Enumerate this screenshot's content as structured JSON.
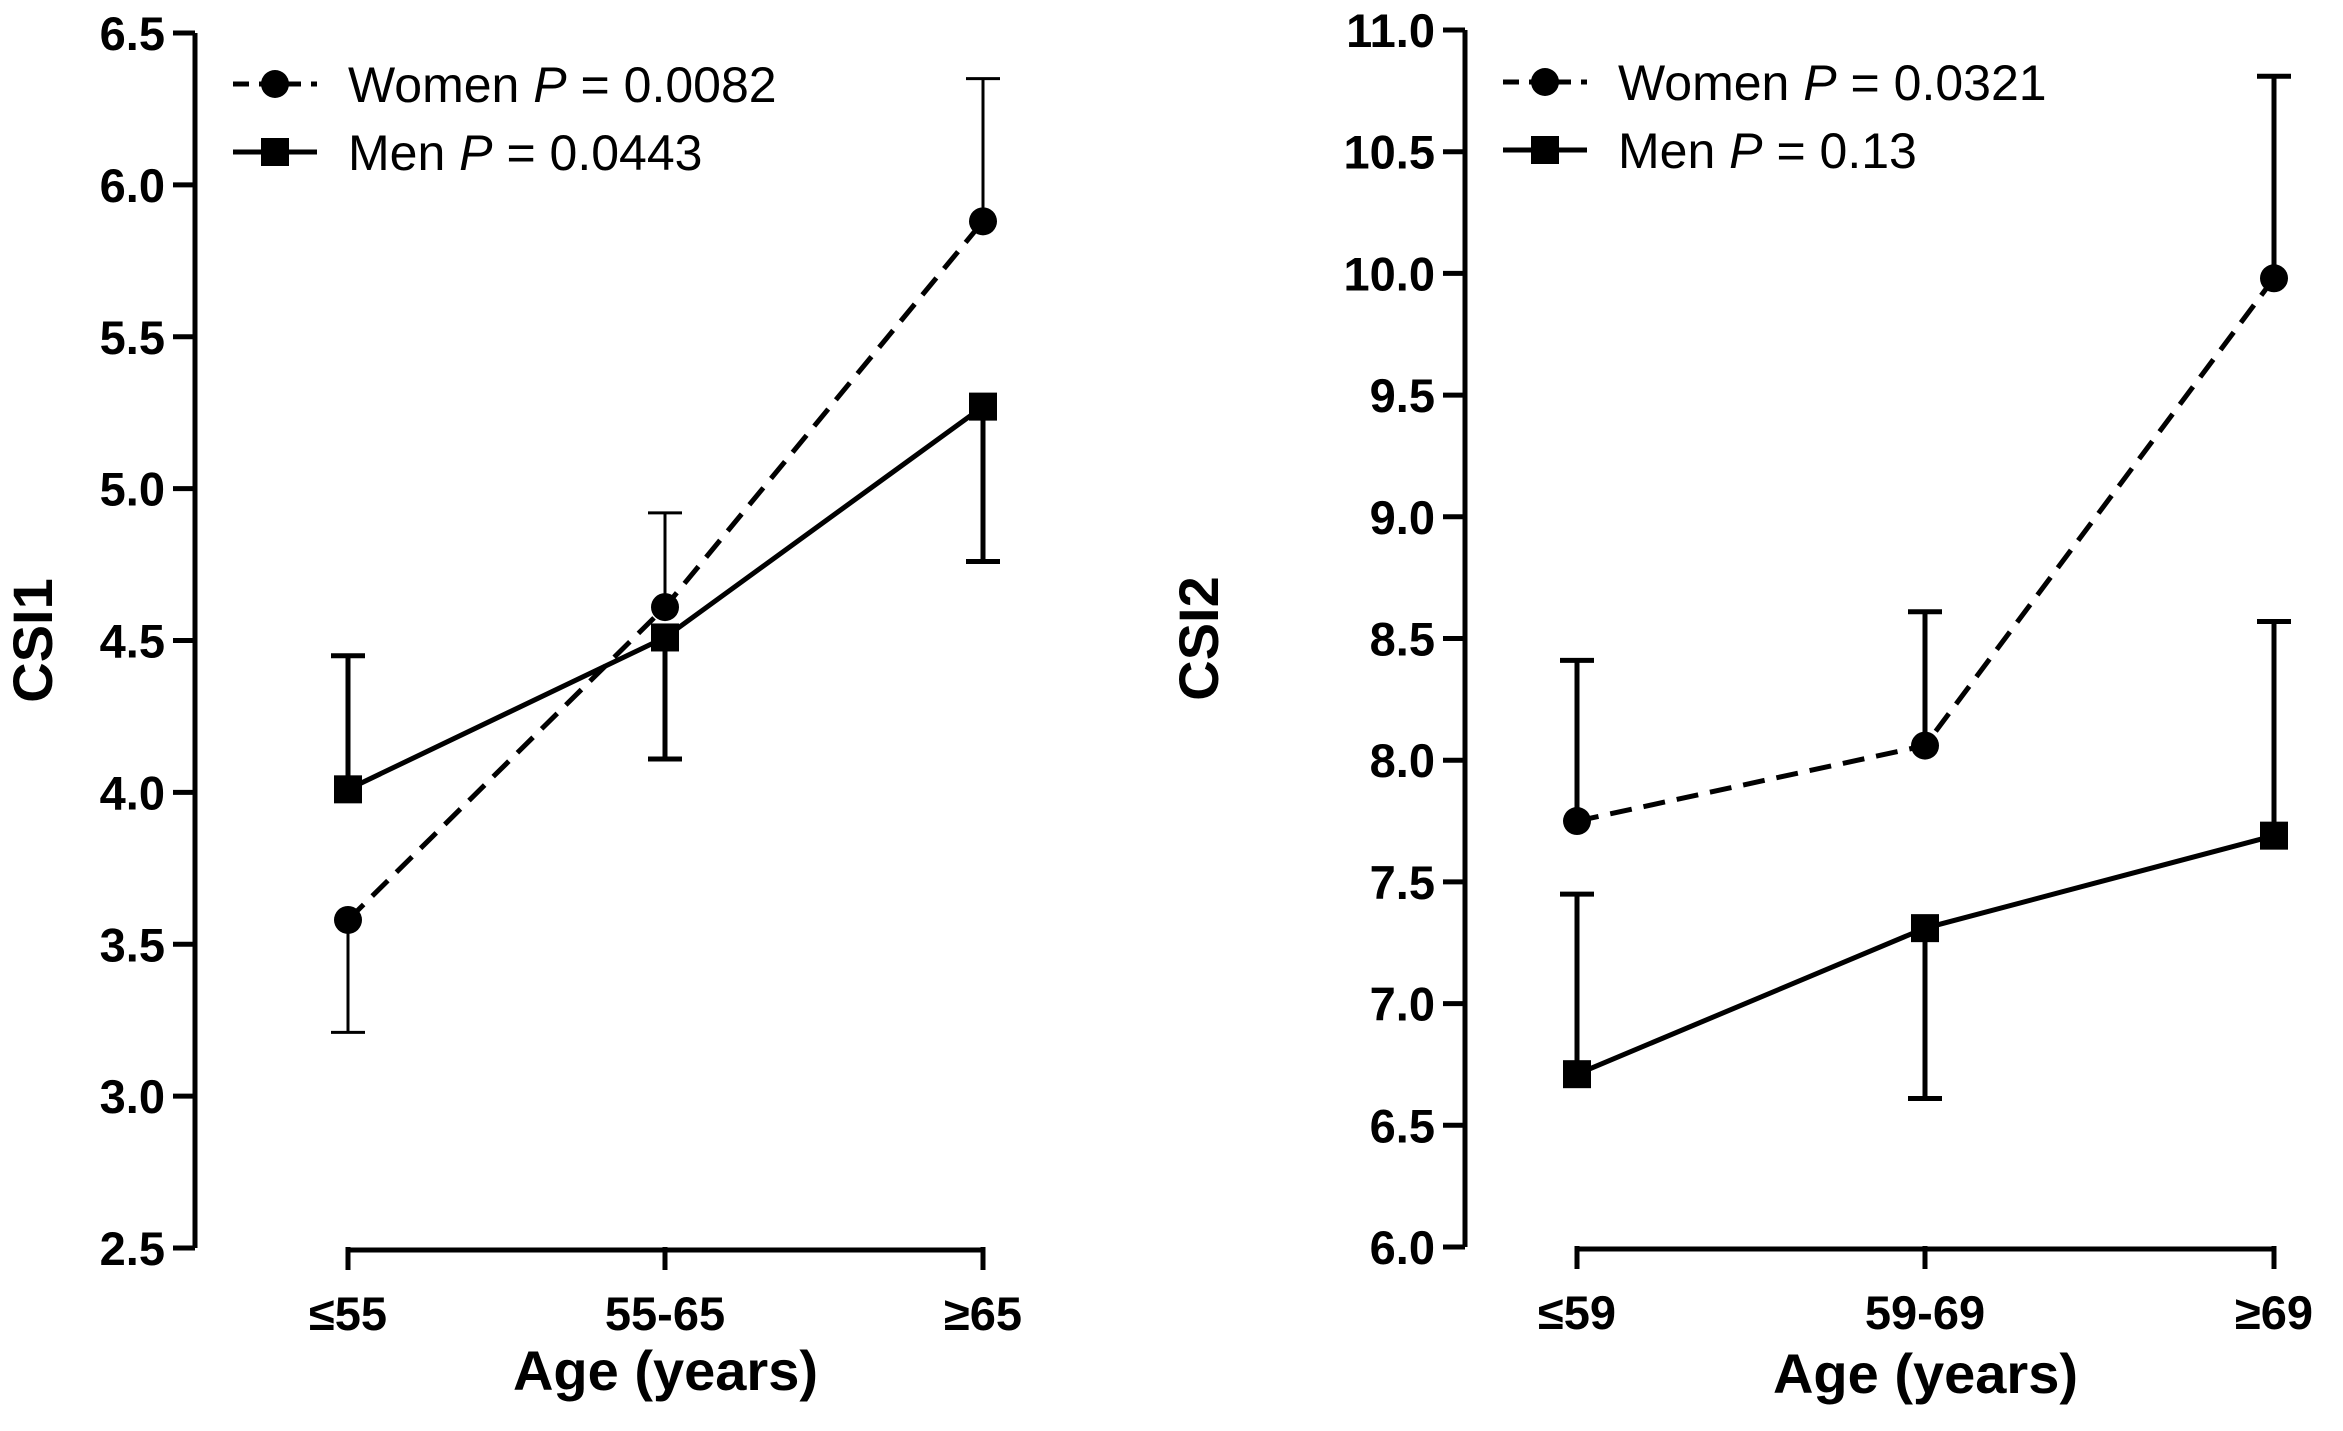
{
  "chart_data": [
    {
      "type": "line",
      "xlabel": "Age (years)",
      "ylabel": "CSI1",
      "categories": [
        "≤55",
        "55-65",
        "≥65"
      ],
      "ylim": [
        2.5,
        6.5
      ],
      "yticks": [
        "2.5",
        "3.0",
        "3.5",
        "4.0",
        "4.5",
        "5.0",
        "5.5",
        "6.0",
        "6.5"
      ],
      "grid": false,
      "legend_position": "top-left",
      "series": [
        {
          "name": "Women",
          "p_label": "P",
          "p_value": "= 0.0082",
          "marker": "circle",
          "line_style": "dashed",
          "values": [
            3.58,
            4.61,
            5.88
          ],
          "error_dir": [
            -1,
            1,
            1
          ],
          "errors": [
            0.37,
            0.31,
            0.47
          ]
        },
        {
          "name": "Men",
          "p_label": "P",
          "p_value": "= 0.0443",
          "marker": "square",
          "line_style": "solid",
          "values": [
            4.01,
            4.51,
            5.27
          ],
          "error_dir": [
            1,
            -1,
            -1
          ],
          "errors": [
            0.44,
            0.4,
            0.51
          ]
        }
      ]
    },
    {
      "type": "line",
      "xlabel": "Age (years)",
      "ylabel": "CSI2",
      "categories": [
        "≤59",
        "59-69",
        "≥69"
      ],
      "ylim": [
        6.0,
        11.0
      ],
      "yticks": [
        "6.0",
        "6.5",
        "7.0",
        "7.5",
        "8.0",
        "8.5",
        "9.0",
        "9.5",
        "10.0",
        "10.5",
        "11.0"
      ],
      "grid": false,
      "legend_position": "top-left",
      "series": [
        {
          "name": "Women",
          "p_label": "P",
          "p_value": "= 0.0321",
          "marker": "circle",
          "line_style": "dashed",
          "values": [
            7.75,
            8.06,
            9.98
          ],
          "error_dir": [
            1,
            1,
            1
          ],
          "errors": [
            0.66,
            0.55,
            0.83
          ]
        },
        {
          "name": "Men",
          "p_label": "P",
          "p_value": "= 0.13",
          "marker": "square",
          "line_style": "solid",
          "values": [
            6.71,
            7.31,
            7.69
          ],
          "error_dir": [
            1,
            -1,
            1
          ],
          "errors": [
            0.74,
            0.7,
            0.88
          ]
        }
      ]
    }
  ]
}
